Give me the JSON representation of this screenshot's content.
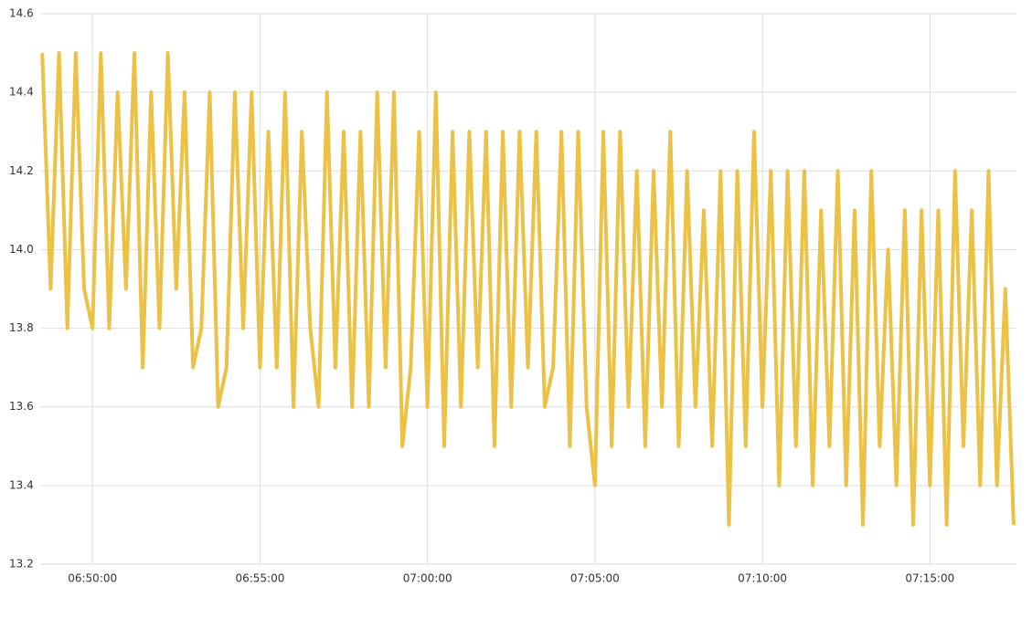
{
  "chart_data": {
    "type": "line",
    "x": [
      "06:48:30",
      "06:48:45",
      "06:49:00",
      "06:49:15",
      "06:49:30",
      "06:49:45",
      "06:50:00",
      "06:50:15",
      "06:50:30",
      "06:50:45",
      "06:51:00",
      "06:51:15",
      "06:51:30",
      "06:51:45",
      "06:52:00",
      "06:52:15",
      "06:52:30",
      "06:52:45",
      "06:53:00",
      "06:53:15",
      "06:53:30",
      "06:53:45",
      "06:54:00",
      "06:54:15",
      "06:54:30",
      "06:54:45",
      "06:55:00",
      "06:55:15",
      "06:55:30",
      "06:55:45",
      "06:56:00",
      "06:56:15",
      "06:56:30",
      "06:56:45",
      "06:57:00",
      "06:57:15",
      "06:57:30",
      "06:57:45",
      "06:58:00",
      "06:58:15",
      "06:58:30",
      "06:58:45",
      "06:59:00",
      "06:59:15",
      "06:59:30",
      "06:59:45",
      "07:00:00",
      "07:00:15",
      "07:00:30",
      "07:00:45",
      "07:01:00",
      "07:01:15",
      "07:01:30",
      "07:01:45",
      "07:02:00",
      "07:02:15",
      "07:02:30",
      "07:02:45",
      "07:03:00",
      "07:03:15",
      "07:03:30",
      "07:03:45",
      "07:04:00",
      "07:04:15",
      "07:04:30",
      "07:04:45",
      "07:05:00",
      "07:05:15",
      "07:05:30",
      "07:05:45",
      "07:06:00",
      "07:06:15",
      "07:06:30",
      "07:06:45",
      "07:07:00",
      "07:07:15",
      "07:07:30",
      "07:07:45",
      "07:08:00",
      "07:08:15",
      "07:08:30",
      "07:08:45",
      "07:09:00",
      "07:09:15",
      "07:09:30",
      "07:09:45",
      "07:10:00",
      "07:10:15",
      "07:10:30",
      "07:10:45",
      "07:11:00",
      "07:11:15",
      "07:11:30",
      "07:11:45",
      "07:12:00",
      "07:12:15",
      "07:12:30",
      "07:12:45",
      "07:13:00",
      "07:13:15",
      "07:13:30",
      "07:13:45",
      "07:14:00",
      "07:14:15",
      "07:14:30",
      "07:14:45",
      "07:15:00",
      "07:15:15",
      "07:15:30",
      "07:15:45",
      "07:16:00",
      "07:16:15",
      "07:16:30",
      "07:16:45",
      "07:17:00",
      "07:17:15",
      "07:17:30"
    ],
    "series": [
      {
        "color": "#ebc246",
        "values": [
          14.5,
          13.9,
          14.5,
          13.8,
          14.5,
          13.9,
          13.8,
          14.5,
          13.8,
          14.4,
          13.9,
          14.5,
          13.7,
          14.4,
          13.8,
          14.5,
          13.9,
          14.4,
          13.7,
          13.8,
          14.4,
          13.6,
          13.7,
          14.4,
          13.8,
          14.4,
          13.7,
          14.3,
          13.7,
          14.4,
          13.6,
          14.3,
          13.8,
          13.6,
          14.4,
          13.7,
          14.3,
          13.6,
          14.3,
          13.6,
          14.4,
          13.7,
          14.4,
          13.5,
          13.7,
          14.3,
          13.6,
          14.4,
          13.5,
          14.3,
          13.6,
          14.3,
          13.7,
          14.3,
          13.5,
          14.3,
          13.6,
          14.3,
          13.7,
          14.3,
          13.6,
          13.7,
          14.3,
          13.5,
          14.3,
          13.6,
          13.4,
          14.3,
          13.5,
          14.3,
          13.6,
          14.2,
          13.5,
          14.2,
          13.6,
          14.3,
          13.5,
          14.2,
          13.6,
          14.1,
          13.5,
          14.2,
          13.3,
          14.2,
          13.5,
          14.3,
          13.6,
          14.2,
          13.4,
          14.2,
          13.5,
          14.2,
          13.4,
          14.1,
          13.5,
          14.2,
          13.4,
          14.1,
          13.3,
          14.2,
          13.5,
          14.0,
          13.4,
          14.1,
          13.3,
          14.1,
          13.4,
          14.1,
          13.3,
          14.2,
          13.5,
          14.1,
          13.4,
          14.2,
          13.4,
          13.9,
          13.3
        ]
      }
    ],
    "xlim": [
      "06:48:28",
      "07:17:35"
    ],
    "xticks": [
      "06:50:00",
      "06:55:00",
      "07:00:00",
      "07:05:00",
      "07:10:00",
      "07:15:00"
    ],
    "ylim": [
      13.2,
      14.6
    ],
    "yticks": [
      13.2,
      13.4,
      13.6,
      13.8,
      {
        "value": 14,
        "label": "14.0"
      },
      14.2,
      14.4,
      14.6
    ],
    "grid": true
  }
}
